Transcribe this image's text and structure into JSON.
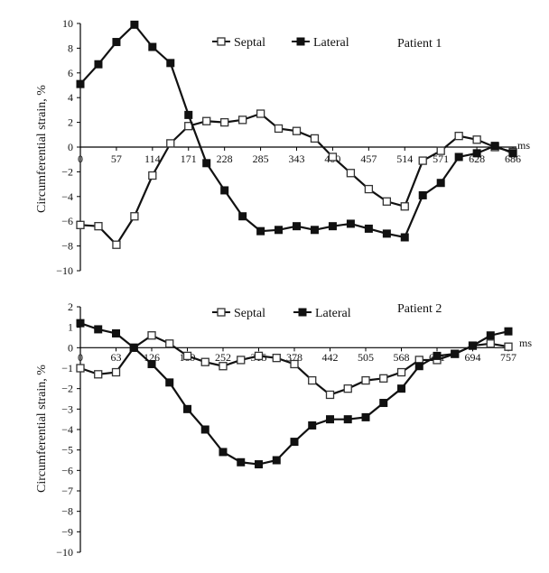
{
  "chart_data": [
    {
      "type": "line",
      "ylabel": "Circumferential strain, %",
      "x_unit": "ms",
      "patient_label": "Patient 1",
      "ylim": [
        -10,
        10
      ],
      "yticks": [
        10,
        8,
        6,
        4,
        2,
        0,
        -2,
        -4,
        -6,
        -8,
        -10
      ],
      "xtick_labels": [
        "0",
        "57",
        "114",
        "171",
        "228",
        "285",
        "343",
        "400",
        "457",
        "514",
        "571",
        "628",
        "686"
      ],
      "xlim": [
        0,
        686
      ],
      "x": [
        0,
        28.6,
        57.2,
        85.8,
        114.3,
        142.9,
        171.5,
        200.1,
        228.7,
        257.3,
        285.9,
        314.4,
        343,
        371.6,
        400.2,
        428.8,
        457.4,
        486,
        514.5,
        543.1,
        571.7,
        600.3,
        628.9,
        657.5,
        686
      ],
      "legend": "top-center",
      "series": [
        {
          "name": "Septal",
          "marker": "open-square",
          "values": [
            -6.3,
            -6.4,
            -7.9,
            -5.6,
            -2.3,
            0.3,
            1.7,
            2.1,
            2.0,
            2.2,
            2.7,
            1.5,
            1.3,
            0.7,
            -0.8,
            -2.1,
            -3.4,
            -4.4,
            -4.8,
            -1.1,
            -0.3,
            0.9,
            0.6,
            0.0,
            -0.4
          ]
        },
        {
          "name": "Lateral",
          "marker": "filled-square",
          "values": [
            5.1,
            6.7,
            8.5,
            9.9,
            8.1,
            6.8,
            2.6,
            -1.3,
            -3.5,
            -5.6,
            -6.8,
            -6.7,
            -6.4,
            -6.7,
            -6.4,
            -6.2,
            -6.6,
            -7.0,
            -7.3,
            -3.9,
            -2.9,
            -0.8,
            -0.5,
            0.1,
            -0.5
          ]
        }
      ]
    },
    {
      "type": "line",
      "ylabel": "Circumferential strain, %",
      "x_unit": "ms",
      "patient_label": "Patient 2",
      "ylim": [
        -10,
        2
      ],
      "yticks": [
        2,
        1,
        0,
        -1,
        -2,
        -3,
        -4,
        -5,
        -6,
        -7,
        -8,
        -9,
        -10
      ],
      "xtick_labels": [
        "0",
        "63",
        "126",
        "189",
        "252",
        "315",
        "378",
        "442",
        "505",
        "568",
        "631",
        "694",
        "757"
      ],
      "xlim": [
        0,
        757
      ],
      "x": [
        0,
        31.5,
        63.1,
        94.6,
        126.2,
        157.7,
        189.3,
        220.8,
        252.3,
        283.9,
        315.4,
        347,
        378.5,
        410,
        441.6,
        473.1,
        504.7,
        536.2,
        567.8,
        599.3,
        630.8,
        662.4,
        693.9,
        725.5,
        757
      ],
      "legend": "top-center",
      "series": [
        {
          "name": "Septal",
          "marker": "open-square",
          "values": [
            -1.0,
            -1.3,
            -1.2,
            0.0,
            0.6,
            0.2,
            -0.4,
            -0.7,
            -0.9,
            -0.6,
            -0.4,
            -0.5,
            -0.8,
            -1.6,
            -2.3,
            -2.0,
            -1.6,
            -1.5,
            -1.2,
            -0.6,
            -0.6,
            -0.3,
            0.1,
            0.2,
            0.05
          ]
        },
        {
          "name": "Lateral",
          "marker": "filled-square",
          "values": [
            1.2,
            0.9,
            0.7,
            0.0,
            -0.8,
            -1.7,
            -3.0,
            -4.0,
            -5.1,
            -5.6,
            -5.7,
            -5.5,
            -4.6,
            -3.8,
            -3.5,
            -3.5,
            -3.4,
            -2.7,
            -2.0,
            -0.9,
            -0.4,
            -0.3,
            0.1,
            0.6,
            0.8
          ]
        }
      ]
    }
  ]
}
